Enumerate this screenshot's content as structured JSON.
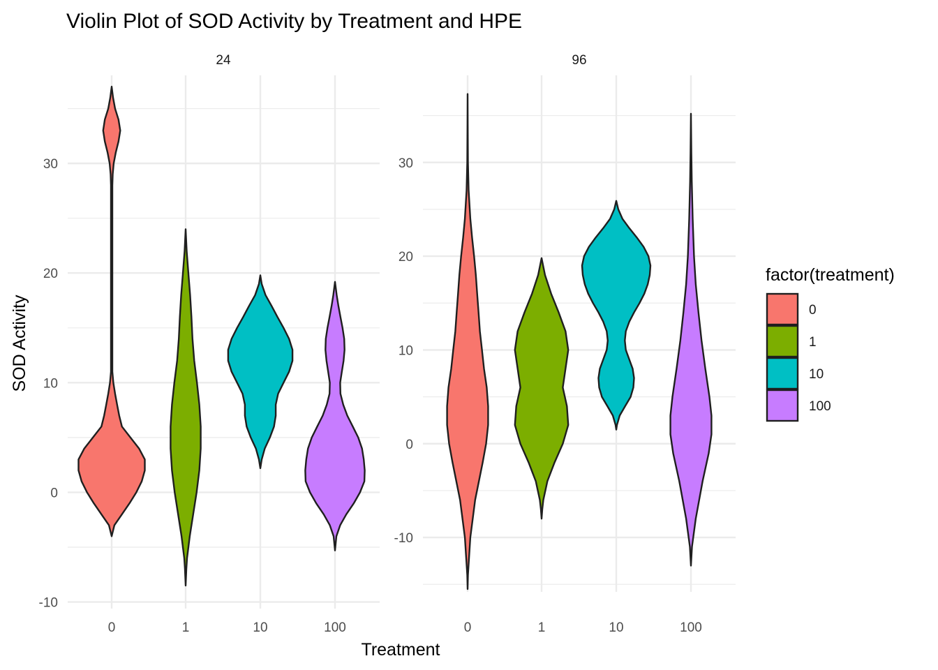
{
  "chart_data": {
    "type": "violin",
    "title": "Violin Plot of SOD Activity by Treatment and HPE",
    "xlabel": "Treatment",
    "ylabel": "SOD Activity",
    "legend": {
      "title": "factor(treatment)",
      "position": "right",
      "entries": [
        {
          "label": "0",
          "color": "#F8766D"
        },
        {
          "label": "1",
          "color": "#7CAE00"
        },
        {
          "label": "10",
          "color": "#00BFC4"
        },
        {
          "label": "100",
          "color": "#C77CFF"
        }
      ]
    },
    "categories": [
      "0",
      "1",
      "10",
      "100"
    ],
    "colors": [
      "#F8766D",
      "#7CAE00",
      "#00BFC4",
      "#C77CFF"
    ],
    "grid": true,
    "panels": [
      {
        "label": "24",
        "ylim": [
          -10.6,
          36.5
        ],
        "yticks": [
          -10,
          0,
          10,
          20,
          30
        ],
        "ytick_labels": [
          "-10",
          "0",
          "10",
          "20",
          "30"
        ],
        "violins": [
          {
            "category": "0",
            "profile": [
              [
                -4,
                0
              ],
              [
                -3,
                0.08
              ],
              [
                -2,
                0.3
              ],
              [
                -1,
                0.52
              ],
              [
                0,
                0.72
              ],
              [
                1,
                0.88
              ],
              [
                2,
                0.97
              ],
              [
                3,
                0.97
              ],
              [
                4,
                0.8
              ],
              [
                5,
                0.55
              ],
              [
                6,
                0.3
              ],
              [
                7,
                0.22
              ],
              [
                8,
                0.16
              ],
              [
                9,
                0.1
              ],
              [
                10,
                0.05
              ],
              [
                11,
                0.02
              ],
              [
                12,
                0.02
              ],
              [
                28,
                0.02
              ],
              [
                29,
                0.03
              ],
              [
                30,
                0.06
              ],
              [
                31,
                0.12
              ],
              [
                32,
                0.2
              ],
              [
                33,
                0.25
              ],
              [
                34,
                0.2
              ],
              [
                35,
                0.1
              ],
              [
                36,
                0.04
              ],
              [
                37,
                0
              ]
            ]
          },
          {
            "category": "1",
            "profile": [
              [
                -8.5,
                0
              ],
              [
                -7,
                0.02
              ],
              [
                -6,
                0.04
              ],
              [
                -4,
                0.12
              ],
              [
                -2,
                0.22
              ],
              [
                0,
                0.32
              ],
              [
                2,
                0.4
              ],
              [
                4,
                0.44
              ],
              [
                6,
                0.44
              ],
              [
                8,
                0.4
              ],
              [
                10,
                0.33
              ],
              [
                12,
                0.25
              ],
              [
                14,
                0.2
              ],
              [
                16,
                0.17
              ],
              [
                18,
                0.13
              ],
              [
                20,
                0.08
              ],
              [
                22,
                0.03
              ],
              [
                24,
                0
              ]
            ]
          },
          {
            "category": "10",
            "profile": [
              [
                2.2,
                0
              ],
              [
                3,
                0.04
              ],
              [
                4,
                0.13
              ],
              [
                5,
                0.28
              ],
              [
                6,
                0.4
              ],
              [
                7,
                0.45
              ],
              [
                8,
                0.45
              ],
              [
                9,
                0.52
              ],
              [
                10,
                0.68
              ],
              [
                11,
                0.84
              ],
              [
                12,
                0.94
              ],
              [
                13,
                0.94
              ],
              [
                14,
                0.84
              ],
              [
                15,
                0.68
              ],
              [
                16,
                0.5
              ],
              [
                17,
                0.33
              ],
              [
                18,
                0.15
              ],
              [
                19,
                0.04
              ],
              [
                19.8,
                0
              ]
            ]
          },
          {
            "category": "100",
            "profile": [
              [
                -5.3,
                0
              ],
              [
                -4,
                0.04
              ],
              [
                -3,
                0.15
              ],
              [
                -2,
                0.33
              ],
              [
                -1,
                0.55
              ],
              [
                0,
                0.73
              ],
              [
                1,
                0.86
              ],
              [
                2,
                0.87
              ],
              [
                3,
                0.84
              ],
              [
                4,
                0.79
              ],
              [
                5,
                0.68
              ],
              [
                6,
                0.52
              ],
              [
                7,
                0.36
              ],
              [
                8,
                0.24
              ],
              [
                9,
                0.16
              ],
              [
                10,
                0.15
              ],
              [
                11,
                0.2
              ],
              [
                12,
                0.25
              ],
              [
                13,
                0.28
              ],
              [
                14,
                0.27
              ],
              [
                15,
                0.22
              ],
              [
                16,
                0.16
              ],
              [
                17,
                0.1
              ],
              [
                18,
                0.05
              ],
              [
                19.2,
                0
              ]
            ]
          }
        ]
      },
      {
        "label": "96",
        "ylim": [
          -15.8,
          37.5
        ],
        "yticks": [
          -10,
          0,
          10,
          20,
          30
        ],
        "ytick_labels": [
          "-10",
          "0",
          "10",
          "20",
          "30"
        ],
        "violins": [
          {
            "category": "0",
            "profile": [
              [
                -15.5,
                0
              ],
              [
                -14,
                0.01
              ],
              [
                -10,
                0.08
              ],
              [
                -6,
                0.22
              ],
              [
                -2,
                0.44
              ],
              [
                0,
                0.54
              ],
              [
                2,
                0.6
              ],
              [
                4,
                0.6
              ],
              [
                6,
                0.56
              ],
              [
                8,
                0.48
              ],
              [
                10,
                0.42
              ],
              [
                12,
                0.36
              ],
              [
                14,
                0.32
              ],
              [
                16,
                0.28
              ],
              [
                18,
                0.24
              ],
              [
                20,
                0.19
              ],
              [
                22,
                0.13
              ],
              [
                24,
                0.08
              ],
              [
                27,
                0.03
              ],
              [
                30,
                0.01
              ],
              [
                34,
                0.005
              ],
              [
                37.3,
                0
              ]
            ]
          },
          {
            "category": "1",
            "profile": [
              [
                -8,
                0
              ],
              [
                -7,
                0.02
              ],
              [
                -6,
                0.05
              ],
              [
                -4,
                0.17
              ],
              [
                -2,
                0.38
              ],
              [
                0,
                0.62
              ],
              [
                2,
                0.78
              ],
              [
                4,
                0.74
              ],
              [
                6,
                0.62
              ],
              [
                8,
                0.7
              ],
              [
                10,
                0.78
              ],
              [
                12,
                0.7
              ],
              [
                14,
                0.5
              ],
              [
                16,
                0.28
              ],
              [
                18,
                0.1
              ],
              [
                19.8,
                0
              ]
            ]
          },
          {
            "category": "10",
            "profile": [
              [
                1.5,
                0
              ],
              [
                2,
                0.02
              ],
              [
                3,
                0.1
              ],
              [
                4,
                0.26
              ],
              [
                5,
                0.42
              ],
              [
                6,
                0.5
              ],
              [
                7,
                0.52
              ],
              [
                8,
                0.48
              ],
              [
                9,
                0.38
              ],
              [
                10,
                0.28
              ],
              [
                11,
                0.25
              ],
              [
                12,
                0.28
              ],
              [
                13,
                0.38
              ],
              [
                14,
                0.52
              ],
              [
                15,
                0.68
              ],
              [
                16,
                0.82
              ],
              [
                17,
                0.92
              ],
              [
                18,
                0.98
              ],
              [
                19,
                1.0
              ],
              [
                20,
                0.94
              ],
              [
                21,
                0.8
              ],
              [
                22,
                0.6
              ],
              [
                23,
                0.38
              ],
              [
                24,
                0.18
              ],
              [
                25,
                0.06
              ],
              [
                25.9,
                0
              ]
            ]
          },
          {
            "category": "100",
            "profile": [
              [
                -13,
                0
              ],
              [
                -11,
                0.03
              ],
              [
                -8,
                0.14
              ],
              [
                -4,
                0.34
              ],
              [
                -1,
                0.52
              ],
              [
                1,
                0.6
              ],
              [
                3,
                0.6
              ],
              [
                5,
                0.54
              ],
              [
                8,
                0.42
              ],
              [
                11,
                0.31
              ],
              [
                14,
                0.22
              ],
              [
                17,
                0.14
              ],
              [
                20,
                0.09
              ],
              [
                24,
                0.05
              ],
              [
                28,
                0.025
              ],
              [
                31,
                0.012
              ],
              [
                35.2,
                0
              ]
            ]
          }
        ]
      }
    ]
  }
}
